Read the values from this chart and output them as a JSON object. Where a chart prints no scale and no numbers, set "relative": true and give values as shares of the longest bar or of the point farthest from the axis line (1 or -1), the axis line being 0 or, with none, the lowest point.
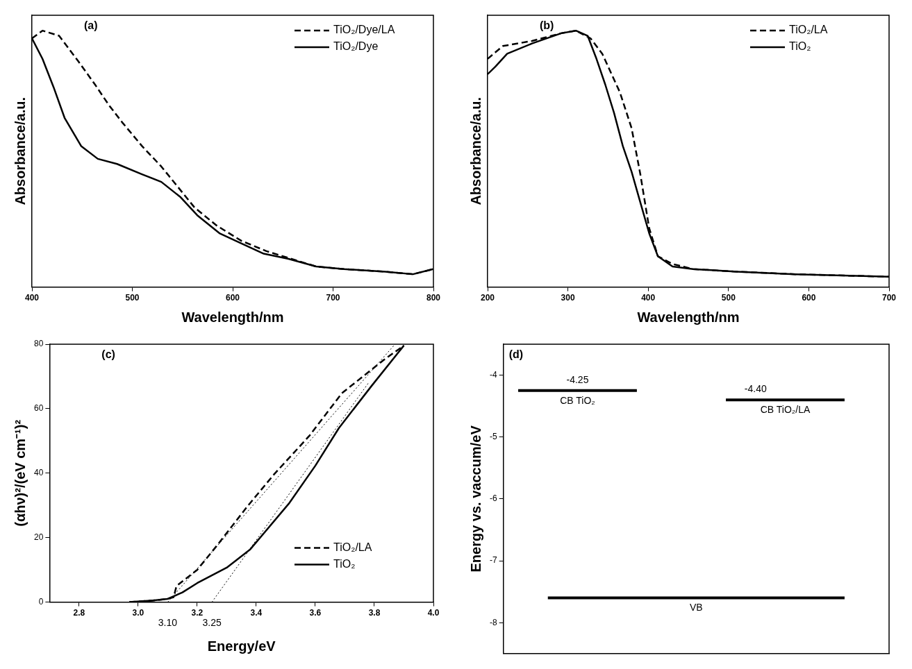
{
  "chart_data": [
    {
      "type": "line",
      "xlabel": "Wavelength/nm",
      "ylabel": "Absorbance/a.u.",
      "relative": true,
      "xlim": [
        400,
        800
      ],
      "xticks": [
        400,
        500,
        600,
        700,
        800
      ],
      "legend": "top right",
      "marker": "none",
      "annotations": [
        "(a)"
      ],
      "series": [
        {
          "name": "TiO₂/Dye/LA",
          "color": "#000000",
          "line_style": "dashed",
          "x": [
            400,
            410.5,
            427,
            446.3,
            462.8,
            476.6,
            490.4,
            509.6,
            528.9,
            545.5,
            562,
            584,
            608.8,
            633.6,
            658.4,
            683.2,
            710.7,
            752,
            779.6,
            799.7
          ],
          "values": [
            0.97,
            1,
            0.98,
            0.88,
            0.79,
            0.71,
            0.64,
            0.55,
            0.47,
            0.39,
            0.31,
            0.24,
            0.18,
            0.14,
            0.11,
            0.08,
            0.07,
            0.06,
            0.05,
            0.07
          ]
        },
        {
          "name": "TiO₂/Dye",
          "color": "#000000",
          "line_style": "solid",
          "x": [
            400,
            410.5,
            421.5,
            432.5,
            449,
            465.6,
            484.8,
            509.6,
            528.9,
            548.2,
            564.7,
            586.8,
            608.8,
            630.9,
            655.6,
            683.2,
            710.7,
            752,
            779.6,
            799.7
          ],
          "values": [
            0.97,
            0.89,
            0.78,
            0.66,
            0.55,
            0.5,
            0.48,
            0.44,
            0.41,
            0.35,
            0.28,
            0.21,
            0.17,
            0.13,
            0.11,
            0.08,
            0.07,
            0.06,
            0.05,
            0.07
          ]
        }
      ]
    },
    {
      "type": "line",
      "xlabel": "Wavelength/nm",
      "ylabel": "Absorbance/a.u.",
      "relative": true,
      "xlim": [
        200,
        700
      ],
      "xticks": [
        200,
        300,
        400,
        500,
        600,
        700
      ],
      "legend": "top right",
      "marker": "none",
      "annotations": [
        "(b)"
      ],
      "series": [
        {
          "name": "TiO₂/LA",
          "color": "#000000",
          "line_style": "dashed",
          "x": [
            200,
            219,
            255.4,
            291.8,
            310,
            328.2,
            342.8,
            364.7,
            379.3,
            390.2,
            401.2,
            412.1,
            430.3,
            455.8,
            510.5,
            583.4,
            700
          ],
          "values": [
            0.89,
            0.94,
            0.96,
            0.99,
            1,
            0.97,
            0.91,
            0.76,
            0.62,
            0.44,
            0.23,
            0.12,
            0.09,
            0.07,
            0.06,
            0.05,
            0.04
          ]
        },
        {
          "name": "TiO₂",
          "color": "#000000",
          "line_style": "solid",
          "x": [
            200,
            209.8,
            224.4,
            255.4,
            291.8,
            310,
            324.6,
            335.6,
            346.5,
            357.4,
            368.4,
            379.3,
            390.2,
            401.2,
            412.1,
            430.3,
            455.8,
            510.5,
            583.4,
            700
          ],
          "values": [
            0.83,
            0.86,
            0.91,
            0.95,
            0.99,
            1,
            0.98,
            0.89,
            0.79,
            0.68,
            0.55,
            0.45,
            0.33,
            0.21,
            0.12,
            0.08,
            0.07,
            0.06,
            0.05,
            0.04
          ]
        }
      ]
    },
    {
      "type": "line",
      "xlabel": "Energy/eV",
      "ylabel": "(αhν)²/(eV cm⁻¹)²",
      "xlim": [
        2.7,
        4.0
      ],
      "xticks": [
        2.8,
        {
          "value": 3,
          "label": "3.0"
        },
        3.2,
        3.4,
        3.6,
        3.8,
        {
          "value": 4,
          "label": "4.0"
        }
      ],
      "ylim": [
        0,
        80
      ],
      "yticks": [
        0,
        20,
        40,
        60,
        80
      ],
      "legend": "bottom right",
      "marker": "none",
      "annotations": [
        "(c)",
        {
          "text": "3.10",
          "x": 3.1,
          "y": 0
        },
        {
          "text": "3.25",
          "x": 3.25,
          "y": 0
        }
      ],
      "series": [
        {
          "name": "TiO₂/LA",
          "color": "#000000",
          "line_style": "dashed",
          "x": [
            2.97,
            3.05,
            3.1,
            3.12,
            3.13,
            3.2,
            3.27,
            3.37,
            3.46,
            3.58,
            3.69,
            3.83,
            3.9
          ],
          "values": [
            0,
            0.5,
            1,
            1.5,
            5,
            10,
            17.9,
            29.7,
            39.6,
            51.6,
            64.8,
            75,
            79.6
          ]
        },
        {
          "name": "TiO₂",
          "color": "#000000",
          "line_style": "solid",
          "x": [
            2.97,
            3.05,
            3.1,
            3.15,
            3.2,
            3.3,
            3.38,
            3.51,
            3.6,
            3.68,
            3.79,
            3.9
          ],
          "values": [
            0,
            0.5,
            1,
            3,
            5.9,
            10.7,
            16.4,
            30.5,
            42.3,
            54,
            67,
            79.6
          ]
        },
        {
          "type": "line",
          "color": "#000000",
          "line_style": "dotted",
          "x": [
            3.1,
            3.87
          ],
          "values": [
            0,
            80
          ]
        },
        {
          "type": "line",
          "color": "#000000",
          "line_style": "dotted",
          "x": [
            3.25,
            3.78
          ],
          "values": [
            0,
            68
          ]
        }
      ]
    },
    {
      "type": "line",
      "ylabel": "Energy vs. vaccum/eV",
      "categories": [
        null,
        null,
        null,
        null,
        null,
        null,
        null,
        null,
        null,
        null,
        null,
        null,
        null
      ],
      "ylim": [
        -8.5,
        -3.5
      ],
      "yticks": [
        -8,
        -7,
        -6,
        -5,
        -4
      ],
      "tick_labels": "y",
      "legend": false,
      "marker": "none",
      "annotations": [
        "(d)"
      ],
      "series": [
        {
          "name": "CB TiO₂",
          "color": "#000000",
          "values": [
            -4.25,
            -4.25,
            -4.25,
            -4.25,
            -4.25,
            null,
            null,
            null,
            null,
            null,
            null,
            null,
            null
          ],
          "value_labels": [
            null,
            null,
            "-4.25",
            null,
            null,
            null,
            null,
            null,
            null,
            null,
            null,
            null,
            null
          ]
        },
        {
          "name": "CB TiO₂/LA",
          "color": "#000000",
          "values": [
            null,
            null,
            null,
            null,
            null,
            null,
            null,
            -4.4,
            -4.4,
            -4.4,
            -4.4,
            -4.4,
            null
          ],
          "value_labels": [
            null,
            null,
            null,
            null,
            null,
            null,
            null,
            null,
            "-4.40",
            null,
            null,
            null,
            null
          ]
        },
        {
          "name": "VB",
          "color": "#000000",
          "values": [
            null,
            -7.6,
            -7.6,
            -7.6,
            -7.6,
            -7.6,
            -7.6,
            -7.6,
            -7.6,
            -7.6,
            -7.6,
            -7.6,
            null
          ]
        }
      ]
    }
  ]
}
